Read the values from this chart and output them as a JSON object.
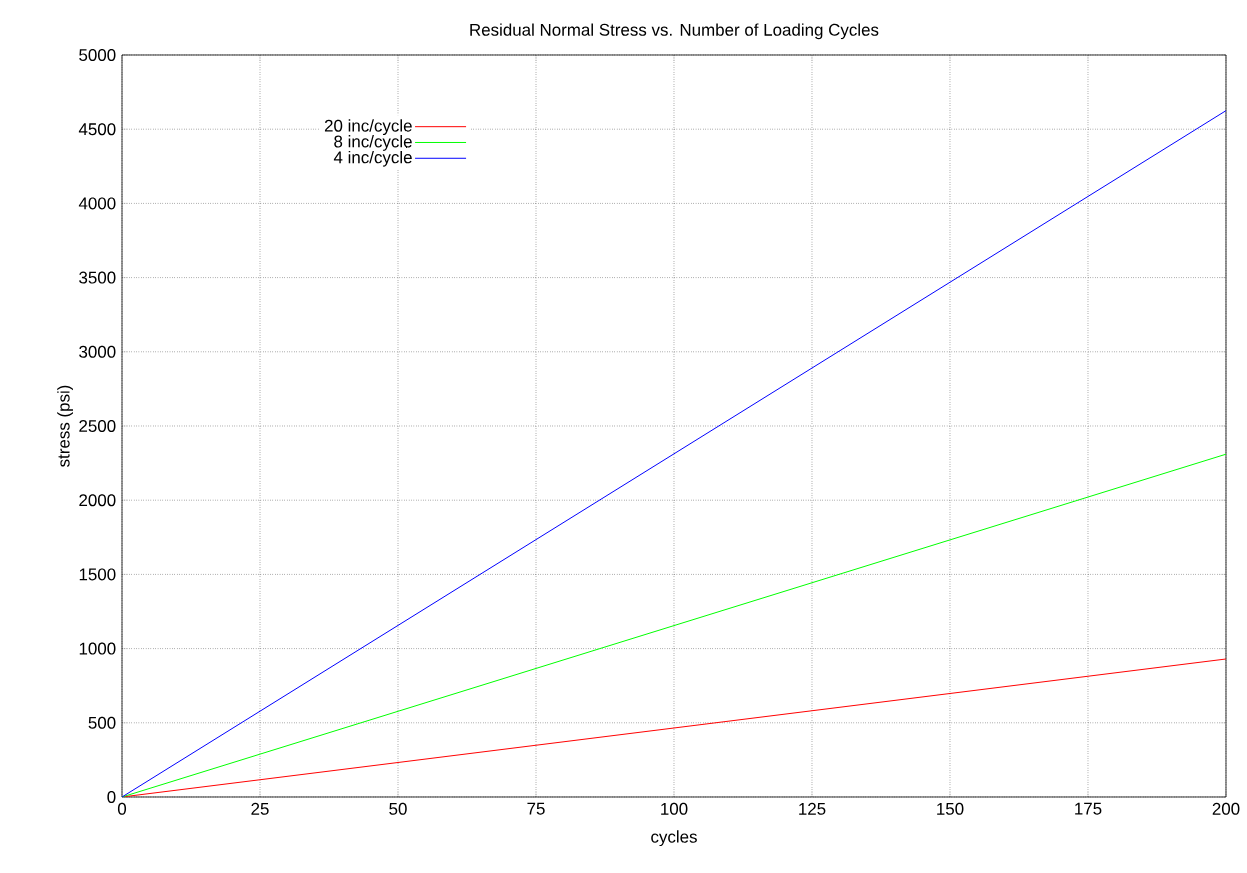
{
  "chart_data": {
    "type": "line",
    "title": "Residual Normal Stress vs. Number of Loading Cycles",
    "xlabel": "cycles",
    "ylabel": "stress (psi)",
    "x": [
      0,
      200
    ],
    "series": [
      {
        "name": "20 inc/cycle",
        "color": "#ff0000",
        "values": [
          0,
          930
        ]
      },
      {
        "name": "8 inc/cycle",
        "color": "#00ff00",
        "values": [
          0,
          2310
        ]
      },
      {
        "name": "4 inc/cycle",
        "color": "#0000ff",
        "values": [
          0,
          4625
        ]
      }
    ],
    "xlim": [
      0,
      200
    ],
    "ylim": [
      0,
      5000
    ],
    "xticks": [
      0,
      25,
      50,
      75,
      100,
      125,
      150,
      175,
      200
    ],
    "yticks": [
      0,
      500,
      1000,
      1500,
      2000,
      2500,
      3000,
      3500,
      4000,
      4500,
      5000
    ],
    "grid": true,
    "legend": "top left"
  }
}
